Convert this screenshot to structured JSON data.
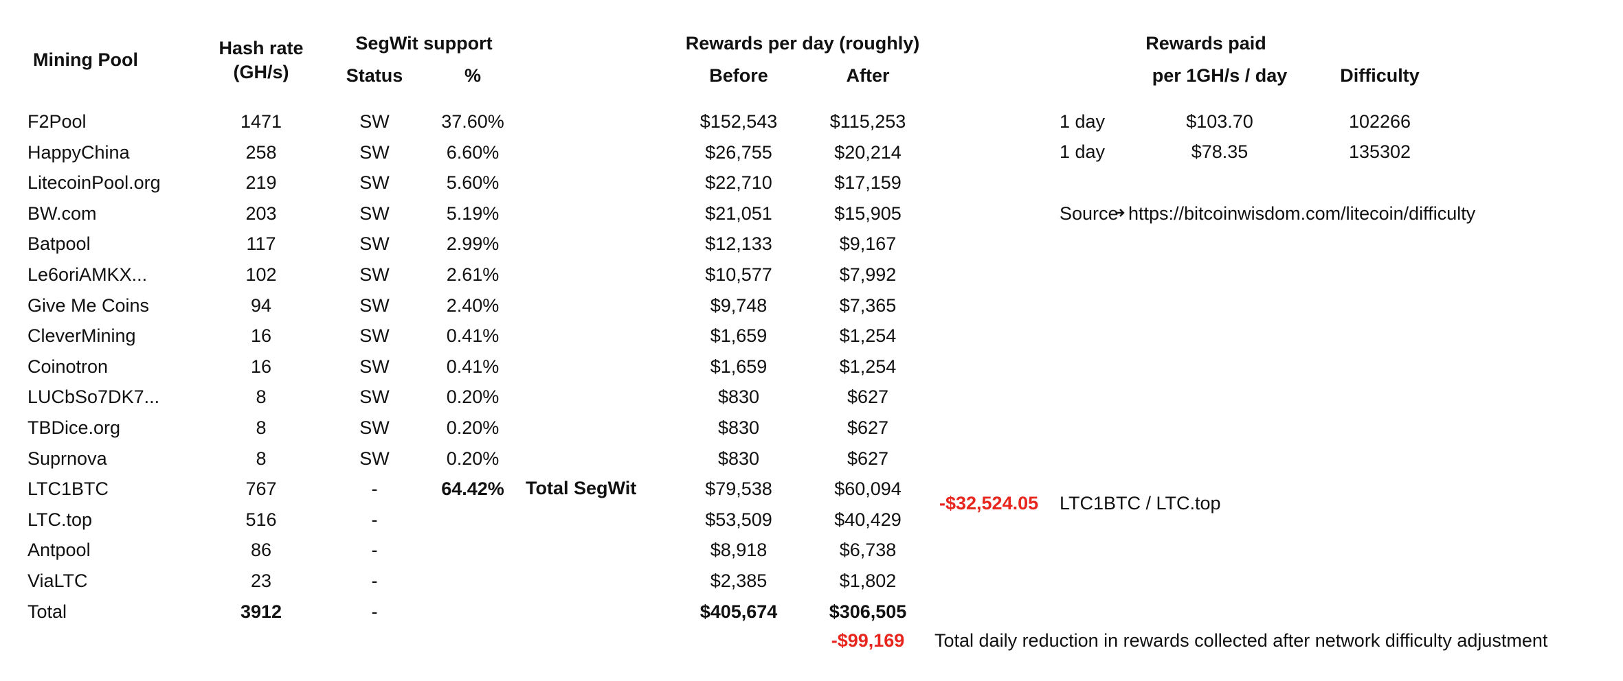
{
  "headers": {
    "mining_pool": "Mining Pool",
    "hash_rate_line1": "Hash rate",
    "hash_rate_line2": "(GH/s)",
    "segwit_support": "SegWit support",
    "status": "Status",
    "percent": "%",
    "rewards_per_day": "Rewards per day (roughly)",
    "before": "Before",
    "after": "After",
    "rewards_paid": "Rewards paid",
    "per_ghs_day": "per 1GH/s / day",
    "difficulty": "Difficulty"
  },
  "rows": [
    {
      "pool": "F2Pool",
      "hash": "1471",
      "status": "SW",
      "pct": "37.60%",
      "before": "$152,543",
      "after": "$115,253"
    },
    {
      "pool": "HappyChina",
      "hash": "258",
      "status": "SW",
      "pct": "6.60%",
      "before": "$26,755",
      "after": "$20,214"
    },
    {
      "pool": "LitecoinPool.org",
      "hash": "219",
      "status": "SW",
      "pct": "5.60%",
      "before": "$22,710",
      "after": "$17,159"
    },
    {
      "pool": "BW.com",
      "hash": "203",
      "status": "SW",
      "pct": "5.19%",
      "before": "$21,051",
      "after": "$15,905"
    },
    {
      "pool": "Batpool",
      "hash": "117",
      "status": "SW",
      "pct": "2.99%",
      "before": "$12,133",
      "after": "$9,167"
    },
    {
      "pool": "Le6oriAMKX...",
      "hash": "102",
      "status": "SW",
      "pct": "2.61%",
      "before": "$10,577",
      "after": "$7,992"
    },
    {
      "pool": "Give Me Coins",
      "hash": "94",
      "status": "SW",
      "pct": "2.40%",
      "before": "$9,748",
      "after": "$7,365"
    },
    {
      "pool": "CleverMining",
      "hash": "16",
      "status": "SW",
      "pct": "0.41%",
      "before": "$1,659",
      "after": "$1,254"
    },
    {
      "pool": "Coinotron",
      "hash": "16",
      "status": "SW",
      "pct": "0.41%",
      "before": "$1,659",
      "after": "$1,254"
    },
    {
      "pool": "LUCbSo7DK7...",
      "hash": "8",
      "status": "SW",
      "pct": "0.20%",
      "before": "$830",
      "after": "$627"
    },
    {
      "pool": "TBDice.org",
      "hash": "8",
      "status": "SW",
      "pct": "0.20%",
      "before": "$830",
      "after": "$627"
    },
    {
      "pool": "Suprnova",
      "hash": "8",
      "status": "SW",
      "pct": "0.20%",
      "before": "$830",
      "after": "$627"
    },
    {
      "pool": "LTC1BTC",
      "hash": "767",
      "status": "-",
      "pct": "64.42%",
      "before": "$79,538",
      "after": "$60,094"
    },
    {
      "pool": "LTC.top",
      "hash": "516",
      "status": "-",
      "pct": "",
      "before": "$53,509",
      "after": "$40,429"
    },
    {
      "pool": "Antpool",
      "hash": "86",
      "status": "-",
      "pct": "",
      "before": "$8,918",
      "after": "$6,738"
    },
    {
      "pool": "ViaLTC",
      "hash": "23",
      "status": "-",
      "pct": "",
      "before": "$2,385",
      "after": "$1,802"
    },
    {
      "pool": "Total",
      "hash": "3912",
      "status": "-",
      "pct": "",
      "before": "$405,674",
      "after": "$306,505"
    }
  ],
  "total_segwit_label": "Total SegWit",
  "rewards_paid_rows": [
    {
      "period": "1 day",
      "amount": "$103.70",
      "difficulty": "102266"
    },
    {
      "period": "1 day",
      "amount": "$78.35",
      "difficulty": "135302"
    }
  ],
  "source_label": "Source",
  "source_url": "https://bitcoinwisdom.com/litecoin/difficulty",
  "ltc_loss_value": "-$32,524.05",
  "ltc_loss_label": "LTC1BTC / LTC.top",
  "total_reduction_value": "-$99,169",
  "total_reduction_label": "Total daily reduction in rewards collected after network difficulty adjustment",
  "colors": {
    "negative": "#e8261e",
    "text": "#111111"
  },
  "icons": {
    "source_arrow": "arrow-right-icon"
  }
}
